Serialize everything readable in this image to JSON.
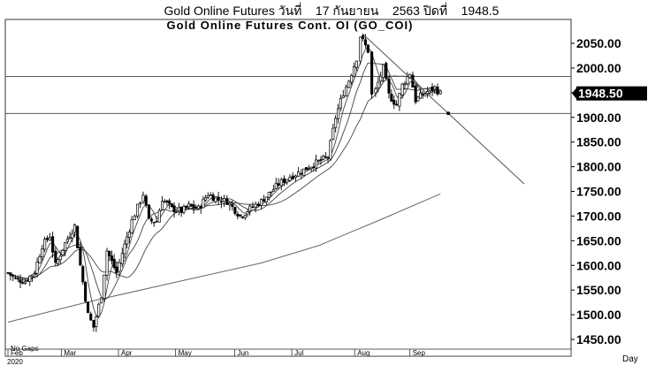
{
  "header": {
    "caption": "Gold Online Futures วันที่    17 กันยายน    2563 ปิดที่    1948.5"
  },
  "chart_data": {
    "type": "candlestick",
    "title": "Gold  Online  Futures  Cont.  OI  (GO_COI)",
    "y_ticks": [
      2050,
      2000,
      1950,
      1900,
      1850,
      1800,
      1750,
      1700,
      1650,
      1600,
      1550,
      1500,
      1450
    ],
    "ylim": [
      1430,
      2080
    ],
    "x_ticks": [
      "Feb",
      "Mar",
      "Apr",
      "May",
      "Jun",
      "Jul",
      "Aug",
      "Sep"
    ],
    "x_axis_label": "Day",
    "year_label": "2020",
    "note": "No Gaps",
    "last_price": "1948.50",
    "horizontal_levels": [
      1983,
      1908
    ],
    "trendline": {
      "from": [
        "2020-08-07",
        2070
      ],
      "to": [
        "2020-10-31",
        1765
      ]
    },
    "price_path": [
      [
        "2020-02-03",
        1585
      ],
      [
        "2020-02-07",
        1572
      ],
      [
        "2020-02-12",
        1568
      ],
      [
        "2020-02-17",
        1588
      ],
      [
        "2020-02-21",
        1640
      ],
      [
        "2020-02-25",
        1660
      ],
      [
        "2020-02-28",
        1600
      ],
      [
        "2020-03-04",
        1645
      ],
      [
        "2020-03-09",
        1680
      ],
      [
        "2020-03-12",
        1600
      ],
      [
        "2020-03-16",
        1500
      ],
      [
        "2020-03-19",
        1475
      ],
      [
        "2020-03-23",
        1540
      ],
      [
        "2020-03-26",
        1630
      ],
      [
        "2020-03-31",
        1585
      ],
      [
        "2020-04-03",
        1625
      ],
      [
        "2020-04-08",
        1690
      ],
      [
        "2020-04-14",
        1745
      ],
      [
        "2020-04-17",
        1690
      ],
      [
        "2020-04-21",
        1690
      ],
      [
        "2020-04-24",
        1735
      ],
      [
        "2020-04-29",
        1715
      ],
      [
        "2020-05-04",
        1710
      ],
      [
        "2020-05-08",
        1720
      ],
      [
        "2020-05-13",
        1715
      ],
      [
        "2020-05-18",
        1745
      ],
      [
        "2020-05-22",
        1735
      ],
      [
        "2020-05-28",
        1730
      ],
      [
        "2020-06-04",
        1700
      ],
      [
        "2020-06-09",
        1715
      ],
      [
        "2020-06-15",
        1730
      ],
      [
        "2020-06-19",
        1745
      ],
      [
        "2020-06-24",
        1765
      ],
      [
        "2020-06-30",
        1780
      ],
      [
        "2020-07-06",
        1790
      ],
      [
        "2020-07-10",
        1800
      ],
      [
        "2020-07-15",
        1810
      ],
      [
        "2020-07-20",
        1820
      ],
      [
        "2020-07-24",
        1900
      ],
      [
        "2020-07-28",
        1950
      ],
      [
        "2020-07-31",
        1975
      ],
      [
        "2020-08-04",
        2020
      ],
      [
        "2020-08-06",
        2065
      ],
      [
        "2020-08-10",
        2035
      ],
      [
        "2020-08-12",
        1945
      ],
      [
        "2020-08-14",
        1955
      ],
      [
        "2020-08-18",
        2000
      ],
      [
        "2020-08-21",
        1945
      ],
      [
        "2020-08-25",
        1925
      ],
      [
        "2020-08-28",
        1965
      ],
      [
        "2020-09-01",
        1990
      ],
      [
        "2020-09-04",
        1935
      ],
      [
        "2020-09-09",
        1950
      ],
      [
        "2020-09-14",
        1960
      ],
      [
        "2020-09-17",
        1948
      ]
    ],
    "long_ma_path": [
      [
        "2020-02-03",
        1485
      ],
      [
        "2020-03-15",
        1525
      ],
      [
        "2020-04-30",
        1565
      ],
      [
        "2020-06-15",
        1605
      ],
      [
        "2020-07-15",
        1640
      ],
      [
        "2020-08-15",
        1690
      ],
      [
        "2020-09-17",
        1745
      ]
    ]
  }
}
